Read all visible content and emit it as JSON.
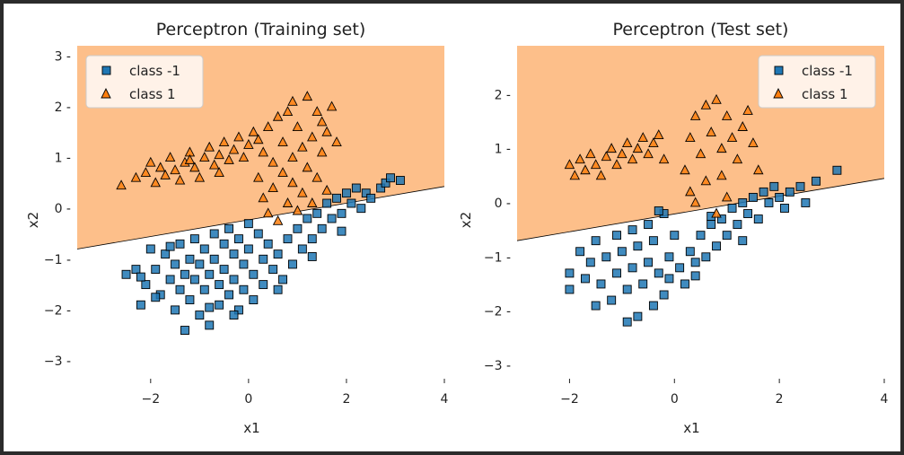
{
  "colors": {
    "region_class_1": "#fdbf8a",
    "region_class_neg1": "#ffffff",
    "class_neg1": "#1f77b4",
    "class_1": "#ff7f0e",
    "boundary": "#000000"
  },
  "chart_data": [
    {
      "type": "scatter",
      "title": "Perceptron (Training set)",
      "xlabel": "x1",
      "ylabel": "x2",
      "xlim": [
        -3.5,
        4.0
      ],
      "ylim": [
        -3.3,
        3.2
      ],
      "xticks": [
        -2,
        0,
        2,
        4
      ],
      "yticks": [
        -3,
        -2,
        -1,
        0,
        1,
        2,
        3
      ],
      "xtick_labels": [
        "−2",
        "0",
        "2",
        "4"
      ],
      "ytick_labels": [
        "−3 -",
        "−2 -",
        "−1 -",
        "0 -",
        "1 -",
        "2 -",
        "3 -"
      ],
      "legend": {
        "placement": "top-left",
        "entries": [
          "class -1",
          "class 1"
        ]
      },
      "decision_boundary": {
        "x": [
          -3.5,
          4.0
        ],
        "y": [
          -0.8,
          0.43
        ]
      },
      "series": [
        {
          "name": "class -1",
          "marker": "square",
          "points": [
            [
              -2.5,
              -1.3
            ],
            [
              -2.3,
              -1.2
            ],
            [
              -2.2,
              -1.9
            ],
            [
              -2.1,
              -1.5
            ],
            [
              -2.0,
              -0.8
            ],
            [
              -1.9,
              -1.2
            ],
            [
              -1.8,
              -1.7
            ],
            [
              -1.7,
              -0.9
            ],
            [
              -1.6,
              -1.4
            ],
            [
              -1.5,
              -1.1
            ],
            [
              -1.5,
              -2.0
            ],
            [
              -1.4,
              -0.7
            ],
            [
              -1.4,
              -1.6
            ],
            [
              -1.3,
              -1.3
            ],
            [
              -1.3,
              -2.4
            ],
            [
              -1.2,
              -1.0
            ],
            [
              -1.2,
              -1.8
            ],
            [
              -1.1,
              -0.6
            ],
            [
              -1.1,
              -1.4
            ],
            [
              -1.0,
              -1.1
            ],
            [
              -1.0,
              -2.1
            ],
            [
              -0.9,
              -0.8
            ],
            [
              -0.9,
              -1.6
            ],
            [
              -0.8,
              -1.3
            ],
            [
              -0.8,
              -2.3
            ],
            [
              -0.7,
              -0.5
            ],
            [
              -0.7,
              -1.0
            ],
            [
              -0.6,
              -1.5
            ],
            [
              -0.6,
              -1.9
            ],
            [
              -0.5,
              -0.7
            ],
            [
              -0.5,
              -1.2
            ],
            [
              -0.4,
              -0.4
            ],
            [
              -0.4,
              -1.7
            ],
            [
              -0.3,
              -0.9
            ],
            [
              -0.3,
              -1.4
            ],
            [
              -0.2,
              -0.6
            ],
            [
              -0.2,
              -2.0
            ],
            [
              -0.1,
              -1.1
            ],
            [
              -0.1,
              -1.6
            ],
            [
              0.0,
              -0.3
            ],
            [
              0.0,
              -0.8
            ],
            [
              0.1,
              -1.3
            ],
            [
              0.1,
              -1.8
            ],
            [
              0.2,
              -0.5
            ],
            [
              0.3,
              -1.0
            ],
            [
              0.3,
              -1.5
            ],
            [
              0.4,
              -0.7
            ],
            [
              0.5,
              -1.2
            ],
            [
              0.6,
              -0.9
            ],
            [
              0.7,
              -1.4
            ],
            [
              0.8,
              -0.6
            ],
            [
              0.9,
              -1.1
            ],
            [
              1.0,
              -0.4
            ],
            [
              1.1,
              -0.8
            ],
            [
              1.2,
              -0.2
            ],
            [
              1.3,
              -0.6
            ],
            [
              1.4,
              -0.1
            ],
            [
              1.5,
              -0.4
            ],
            [
              1.6,
              0.1
            ],
            [
              1.7,
              -0.2
            ],
            [
              1.8,
              0.2
            ],
            [
              1.9,
              -0.1
            ],
            [
              2.0,
              0.3
            ],
            [
              2.1,
              0.1
            ],
            [
              2.2,
              0.4
            ],
            [
              2.3,
              0.0
            ],
            [
              2.4,
              0.3
            ],
            [
              2.5,
              0.2
            ],
            [
              2.7,
              0.4
            ],
            [
              2.8,
              0.5
            ],
            [
              2.9,
              0.6
            ],
            [
              3.1,
              0.55
            ],
            [
              -1.6,
              -0.75
            ],
            [
              -2.2,
              -1.35
            ],
            [
              -1.9,
              -1.75
            ],
            [
              -0.3,
              -2.1
            ],
            [
              -0.8,
              -1.95
            ],
            [
              0.6,
              -1.6
            ],
            [
              1.3,
              -0.95
            ],
            [
              1.9,
              -0.45
            ]
          ]
        },
        {
          "name": "class 1",
          "marker": "triangle",
          "points": [
            [
              -2.6,
              0.45
            ],
            [
              -2.3,
              0.6
            ],
            [
              -2.1,
              0.7
            ],
            [
              -2.0,
              0.9
            ],
            [
              -1.9,
              0.5
            ],
            [
              -1.8,
              0.8
            ],
            [
              -1.7,
              0.65
            ],
            [
              -1.6,
              1.0
            ],
            [
              -1.5,
              0.75
            ],
            [
              -1.4,
              0.55
            ],
            [
              -1.3,
              0.9
            ],
            [
              -1.2,
              1.1
            ],
            [
              -1.1,
              0.8
            ],
            [
              -1.0,
              0.6
            ],
            [
              -0.9,
              1.0
            ],
            [
              -0.8,
              1.2
            ],
            [
              -0.7,
              0.85
            ],
            [
              -0.6,
              1.05
            ],
            [
              -0.5,
              1.3
            ],
            [
              -0.4,
              0.95
            ],
            [
              -0.3,
              1.15
            ],
            [
              -0.2,
              1.4
            ],
            [
              -0.1,
              1.0
            ],
            [
              0.0,
              1.25
            ],
            [
              0.1,
              1.5
            ],
            [
              0.2,
              0.6
            ],
            [
              0.3,
              1.1
            ],
            [
              0.3,
              0.2
            ],
            [
              0.4,
              1.6
            ],
            [
              0.4,
              -0.1
            ],
            [
              0.5,
              0.9
            ],
            [
              0.5,
              0.4
            ],
            [
              0.6,
              1.8
            ],
            [
              0.6,
              -0.25
            ],
            [
              0.7,
              1.3
            ],
            [
              0.7,
              0.7
            ],
            [
              0.8,
              0.1
            ],
            [
              0.8,
              1.9
            ],
            [
              0.9,
              1.0
            ],
            [
              0.9,
              0.5
            ],
            [
              1.0,
              1.6
            ],
            [
              1.0,
              -0.05
            ],
            [
              1.1,
              1.2
            ],
            [
              1.1,
              0.3
            ],
            [
              1.2,
              2.2
            ],
            [
              1.2,
              0.8
            ],
            [
              1.3,
              1.4
            ],
            [
              1.3,
              0.1
            ],
            [
              1.4,
              1.9
            ],
            [
              1.4,
              0.6
            ],
            [
              1.5,
              1.1
            ],
            [
              1.6,
              1.5
            ],
            [
              1.6,
              0.35
            ],
            [
              1.7,
              2.0
            ],
            [
              1.8,
              1.3
            ],
            [
              -1.2,
              0.95
            ],
            [
              -0.6,
              0.7
            ],
            [
              0.2,
              1.35
            ],
            [
              0.9,
              2.1
            ],
            [
              1.5,
              1.7
            ]
          ]
        }
      ]
    },
    {
      "type": "scatter",
      "title": "Perceptron (Test set)",
      "xlabel": "x1",
      "ylabel": "x2",
      "xlim": [
        -3.0,
        4.0
      ],
      "ylim": [
        -3.2,
        2.9
      ],
      "xticks": [
        -2,
        0,
        2,
        4
      ],
      "yticks": [
        -3,
        -2,
        -1,
        0,
        1,
        2
      ],
      "xtick_labels": [
        "−2",
        "0",
        "2",
        "4"
      ],
      "ytick_labels": [
        "−3 -",
        "−2 -",
        "−1 -",
        "0 -",
        "1 -",
        "2 -"
      ],
      "legend": {
        "placement": "top-right",
        "entries": [
          "class -1",
          "class 1"
        ]
      },
      "decision_boundary": {
        "x": [
          -3.0,
          4.0
        ],
        "y": [
          -0.7,
          0.45
        ]
      },
      "series": [
        {
          "name": "class -1",
          "marker": "square",
          "points": [
            [
              -2.0,
              -1.3
            ],
            [
              -2.0,
              -1.6
            ],
            [
              -1.8,
              -0.9
            ],
            [
              -1.7,
              -1.4
            ],
            [
              -1.6,
              -1.1
            ],
            [
              -1.5,
              -0.7
            ],
            [
              -1.4,
              -1.5
            ],
            [
              -1.3,
              -1.0
            ],
            [
              -1.2,
              -1.8
            ],
            [
              -1.1,
              -0.6
            ],
            [
              -1.1,
              -1.3
            ],
            [
              -1.0,
              -0.9
            ],
            [
              -0.9,
              -1.6
            ],
            [
              -0.9,
              -2.2
            ],
            [
              -0.8,
              -0.5
            ],
            [
              -0.8,
              -1.2
            ],
            [
              -0.7,
              -0.8
            ],
            [
              -0.7,
              -2.1
            ],
            [
              -0.6,
              -1.5
            ],
            [
              -0.5,
              -0.4
            ],
            [
              -0.5,
              -1.1
            ],
            [
              -0.4,
              -0.7
            ],
            [
              -0.4,
              -1.9
            ],
            [
              -0.3,
              -1.3
            ],
            [
              -0.2,
              -0.2
            ],
            [
              -0.2,
              -1.7
            ],
            [
              -0.1,
              -1.0
            ],
            [
              -0.1,
              -1.4
            ],
            [
              0.0,
              -0.6
            ],
            [
              0.1,
              -1.2
            ],
            [
              0.2,
              -1.5
            ],
            [
              0.3,
              -0.9
            ],
            [
              0.4,
              -1.1
            ],
            [
              0.5,
              -0.6
            ],
            [
              0.6,
              -1.0
            ],
            [
              0.7,
              -0.4
            ],
            [
              0.8,
              -0.8
            ],
            [
              0.9,
              -0.3
            ],
            [
              1.0,
              -0.6
            ],
            [
              1.1,
              -0.1
            ],
            [
              1.2,
              -0.4
            ],
            [
              1.3,
              0.0
            ],
            [
              1.4,
              -0.2
            ],
            [
              1.5,
              0.1
            ],
            [
              1.6,
              -0.3
            ],
            [
              1.7,
              0.2
            ],
            [
              1.8,
              0.0
            ],
            [
              1.9,
              0.3
            ],
            [
              2.0,
              0.1
            ],
            [
              2.1,
              -0.1
            ],
            [
              2.2,
              0.2
            ],
            [
              2.4,
              0.3
            ],
            [
              2.5,
              0.0
            ],
            [
              2.7,
              0.4
            ],
            [
              3.1,
              0.6
            ],
            [
              -1.5,
              -1.9
            ],
            [
              0.4,
              -1.35
            ],
            [
              1.3,
              -0.7
            ],
            [
              -0.3,
              -0.15
            ],
            [
              0.7,
              -0.25
            ]
          ]
        },
        {
          "name": "class 1",
          "marker": "triangle",
          "points": [
            [
              -2.0,
              0.7
            ],
            [
              -1.9,
              0.5
            ],
            [
              -1.8,
              0.8
            ],
            [
              -1.7,
              0.6
            ],
            [
              -1.6,
              0.9
            ],
            [
              -1.5,
              0.7
            ],
            [
              -1.4,
              0.5
            ],
            [
              -1.3,
              0.85
            ],
            [
              -1.2,
              1.0
            ],
            [
              -1.1,
              0.7
            ],
            [
              -1.0,
              0.9
            ],
            [
              -0.9,
              1.1
            ],
            [
              -0.8,
              0.8
            ],
            [
              -0.7,
              1.0
            ],
            [
              -0.6,
              1.2
            ],
            [
              -0.5,
              0.9
            ],
            [
              -0.4,
              1.1
            ],
            [
              -0.3,
              1.25
            ],
            [
              -0.2,
              0.8
            ],
            [
              0.2,
              0.6
            ],
            [
              0.3,
              1.2
            ],
            [
              0.3,
              0.2
            ],
            [
              0.4,
              1.6
            ],
            [
              0.4,
              0.0
            ],
            [
              0.5,
              0.9
            ],
            [
              0.6,
              1.8
            ],
            [
              0.6,
              0.4
            ],
            [
              0.7,
              1.3
            ],
            [
              0.8,
              1.9
            ],
            [
              0.8,
              -0.2
            ],
            [
              0.9,
              1.0
            ],
            [
              0.9,
              0.5
            ],
            [
              1.0,
              1.6
            ],
            [
              1.0,
              0.1
            ],
            [
              1.1,
              1.2
            ],
            [
              1.2,
              0.8
            ],
            [
              1.3,
              1.4
            ],
            [
              1.4,
              1.7
            ],
            [
              1.5,
              1.1
            ],
            [
              1.6,
              0.6
            ]
          ]
        }
      ]
    }
  ]
}
